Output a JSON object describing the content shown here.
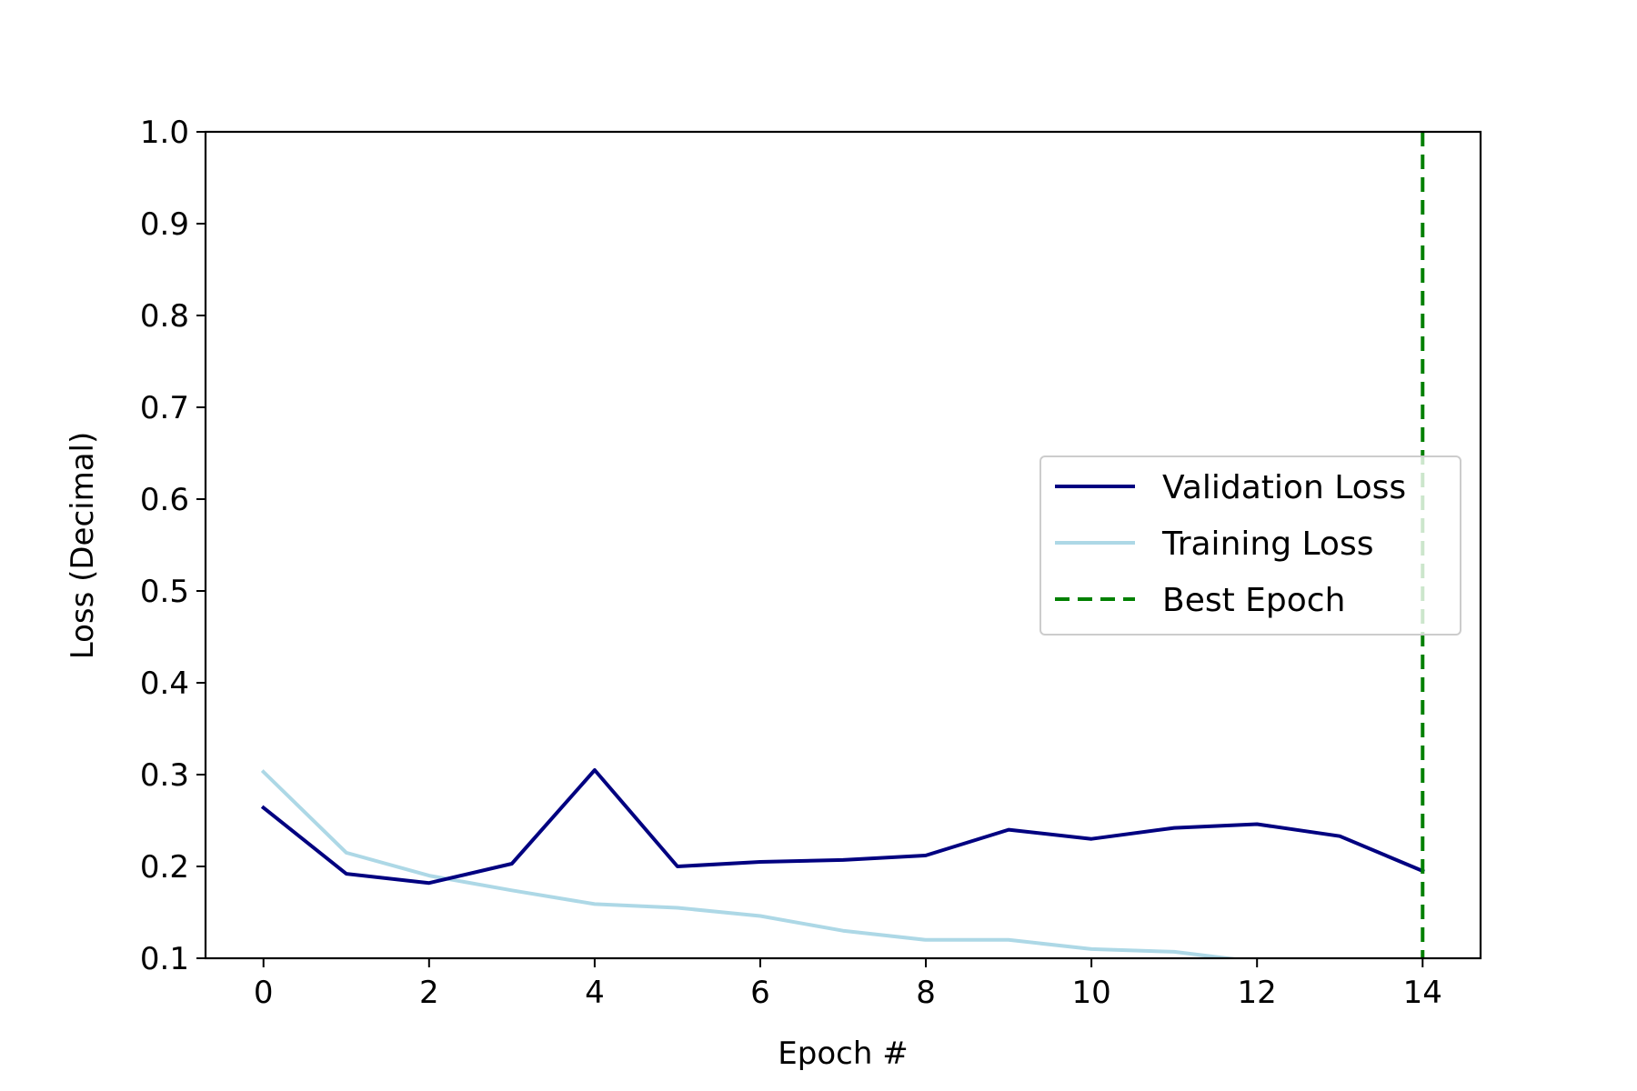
{
  "chart_data": {
    "type": "line",
    "xlabel": "Epoch #",
    "ylabel": "Loss (Decimal)",
    "xlim": [
      -0.7,
      14.7
    ],
    "ylim": [
      0.1,
      1.0
    ],
    "x": [
      0,
      1,
      2,
      3,
      4,
      5,
      6,
      7,
      8,
      9,
      10,
      11,
      12,
      13,
      14
    ],
    "x_ticks": [
      0,
      2,
      4,
      6,
      8,
      10,
      12,
      14
    ],
    "y_ticks": [
      0.1,
      0.2,
      0.3,
      0.4,
      0.5,
      0.6,
      0.7,
      0.8,
      0.9,
      1.0
    ],
    "x_tick_labels": [
      "0",
      "2",
      "4",
      "6",
      "8",
      "10",
      "12",
      "14"
    ],
    "y_tick_labels": [
      "0.1",
      "0.2",
      "0.3",
      "0.4",
      "0.5",
      "0.6",
      "0.7",
      "0.8",
      "0.9",
      "1.0"
    ],
    "series": [
      {
        "name": "Validation Loss",
        "color": "#000080",
        "style": "solid",
        "values": [
          0.264,
          0.192,
          0.182,
          0.203,
          0.305,
          0.2,
          0.205,
          0.207,
          0.212,
          0.24,
          0.23,
          0.242,
          0.246,
          0.233,
          0.195
        ]
      },
      {
        "name": "Training Loss",
        "color": "#add8e6",
        "style": "solid",
        "values": [
          0.303,
          0.215,
          0.19,
          0.174,
          0.159,
          0.155,
          0.146,
          0.13,
          0.12,
          0.12,
          0.11,
          0.107,
          0.096,
          0.091,
          0.088
        ]
      }
    ],
    "vlines": [
      {
        "name": "Best Epoch",
        "x": 14,
        "color": "#008000",
        "style": "dashed"
      }
    ],
    "legend": {
      "position": "center-right",
      "entries": [
        "Validation Loss",
        "Training Loss",
        "Best Epoch"
      ]
    },
    "grid": false
  }
}
